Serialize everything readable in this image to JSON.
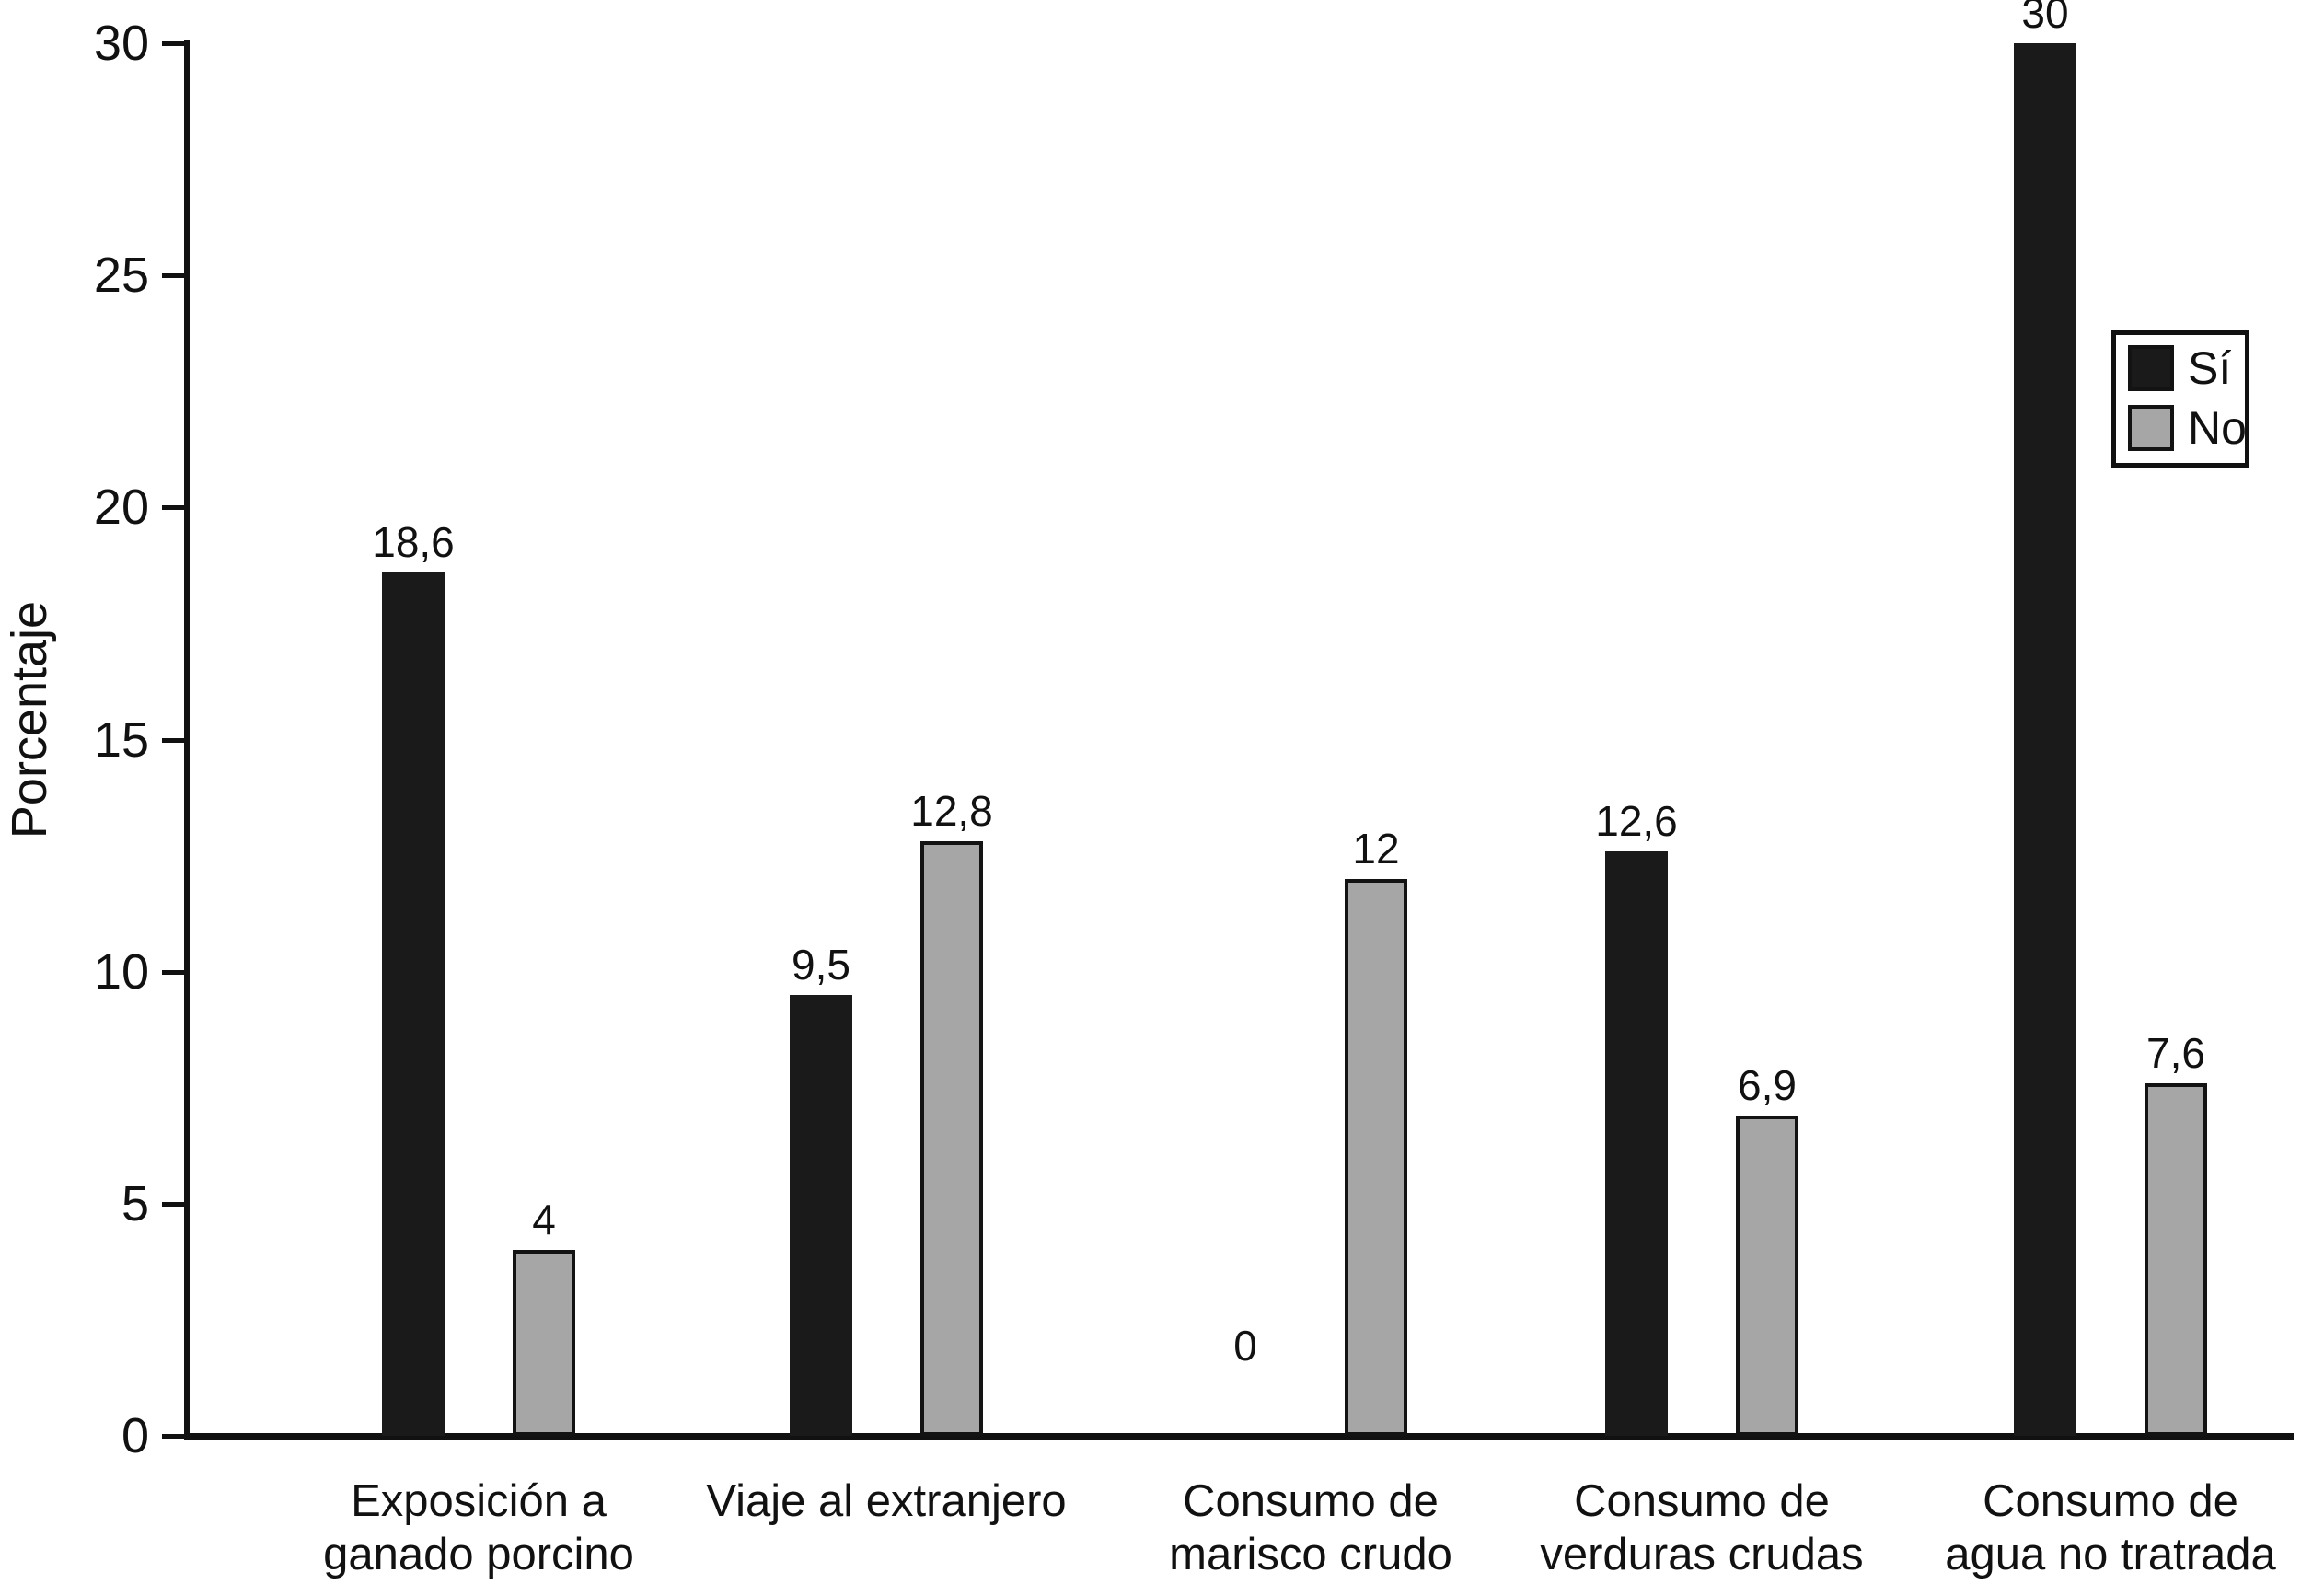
{
  "chart_data": {
    "type": "bar",
    "title": "",
    "xlabel": "",
    "ylabel": "Porcentaje",
    "ylim": [
      0,
      30
    ],
    "yticks": [
      0,
      5,
      10,
      15,
      20,
      25,
      30
    ],
    "grid": false,
    "legend_position": "upper right",
    "categories": [
      "Exposición a ganado porcino",
      "Viaje al extranjero",
      "Consumo de marisco crudo",
      "Consumo de verduras crudas",
      "Consumo de agua no tratrada"
    ],
    "category_lines": [
      [
        "Exposición a",
        "ganado porcino"
      ],
      [
        "Viaje al extranjero"
      ],
      [
        "Consumo de",
        "marisco crudo"
      ],
      [
        "Consumo de",
        "verduras crudas"
      ],
      [
        "Consumo de",
        "agua no tratrada"
      ]
    ],
    "series": [
      {
        "name": "Sí",
        "color": "#1a1a1a",
        "outlined": false,
        "values": [
          18.6,
          9.5,
          0,
          12.6,
          30
        ],
        "labels": [
          "18,6",
          "9,5",
          "0",
          "12,6",
          "30"
        ]
      },
      {
        "name": "No",
        "color": "#a6a6a6",
        "outlined": true,
        "values": [
          4,
          12.8,
          12,
          6.9,
          7.6
        ],
        "labels": [
          "4",
          "12,8",
          "12",
          "6,9",
          "7,6"
        ]
      }
    ]
  },
  "colors": {
    "axis": "#111111",
    "bar_si": "#1a1a1a",
    "bar_no": "#a6a6a6",
    "background": "#ffffff"
  }
}
